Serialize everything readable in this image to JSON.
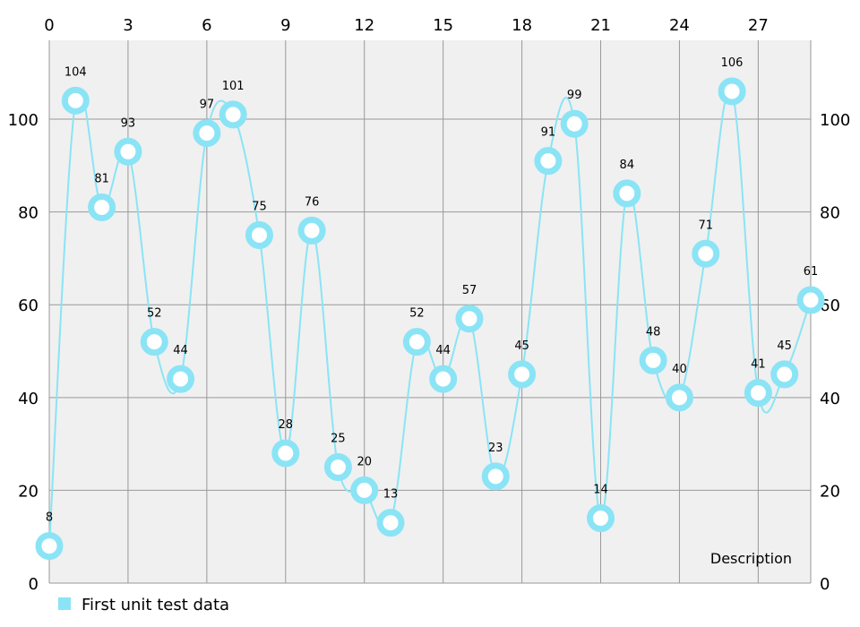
{
  "chart_data": {
    "type": "line",
    "title": "",
    "description": "Description",
    "series": [
      {
        "name": "First unit test data",
        "color": "#8ae4f5",
        "x": [
          0,
          1,
          2,
          3,
          4,
          5,
          6,
          7,
          8,
          9,
          10,
          11,
          12,
          13,
          14,
          15,
          16,
          17,
          18,
          19,
          20,
          21,
          22,
          23,
          24,
          25,
          26,
          27,
          28,
          29
        ],
        "values": [
          8,
          104,
          81,
          93,
          52,
          44,
          97,
          101,
          75,
          28,
          76,
          25,
          20,
          13,
          52,
          44,
          57,
          23,
          45,
          91,
          99,
          14,
          84,
          48,
          40,
          71,
          106,
          41,
          45,
          61
        ]
      }
    ],
    "x_ticks": [
      "0",
      "3",
      "6",
      "9",
      "12",
      "15",
      "18",
      "21",
      "24",
      "27"
    ],
    "y_ticks": [
      "0",
      "20",
      "40",
      "60",
      "80",
      "100"
    ],
    "xlim": [
      0,
      29
    ],
    "ylim": [
      0,
      117
    ],
    "x_axis_position": "top",
    "y_axes": [
      "left",
      "right"
    ],
    "grid": true,
    "legend_position": "bottom-left",
    "plot_background": "#f0f0f0",
    "grid_color": "#999999"
  }
}
